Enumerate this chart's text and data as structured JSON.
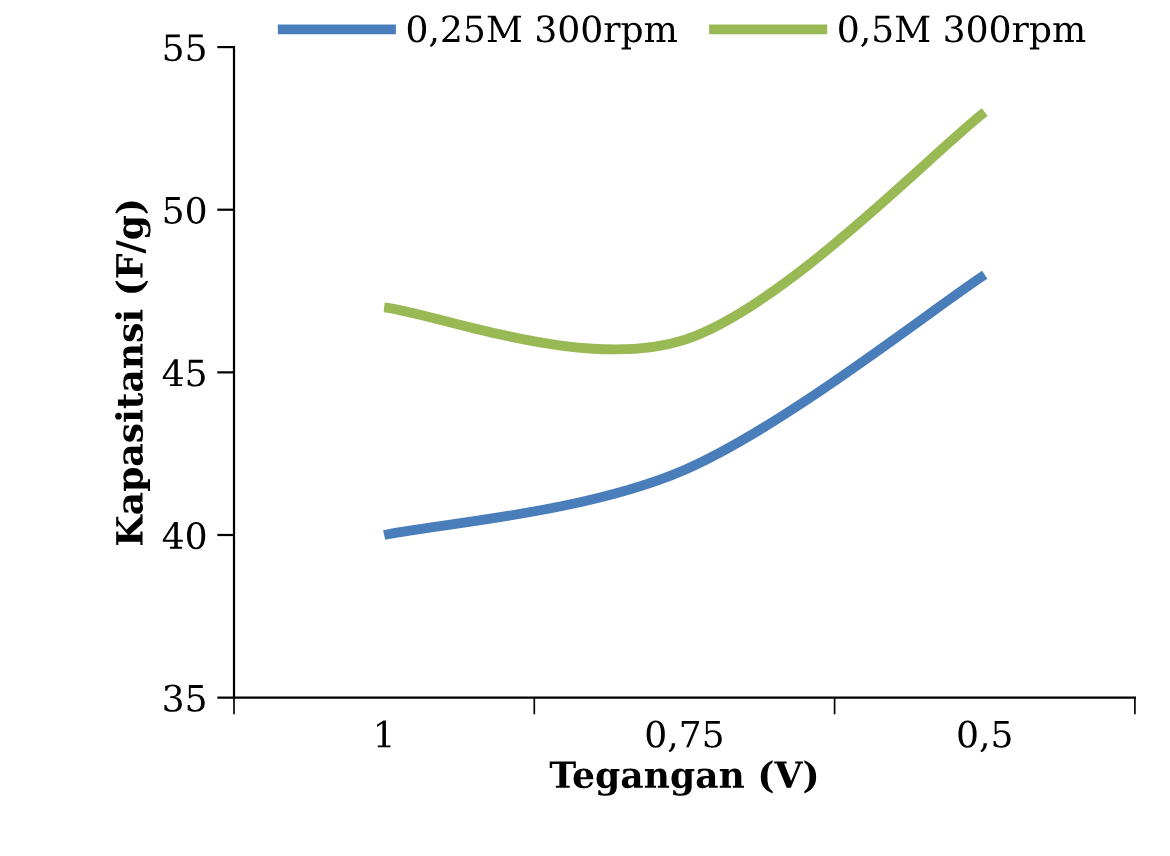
{
  "chart_data": {
    "type": "line",
    "xlabel": "Tegangan (V)",
    "ylabel": "Kapasitansi (F/g)",
    "categories": [
      "1",
      "0,75",
      "0,5"
    ],
    "series": [
      {
        "name": "0,25M 300rpm",
        "color": "#4a7ebb",
        "values": [
          40,
          42,
          48
        ]
      },
      {
        "name": "0,5M 300rpm",
        "color": "#98b954",
        "values": [
          47,
          46,
          53
        ]
      }
    ],
    "ylim": [
      35,
      55
    ],
    "yticks": [
      35,
      40,
      45,
      50,
      55
    ],
    "grid": false,
    "legend": "top",
    "marker": "none",
    "line_style": "solid"
  }
}
